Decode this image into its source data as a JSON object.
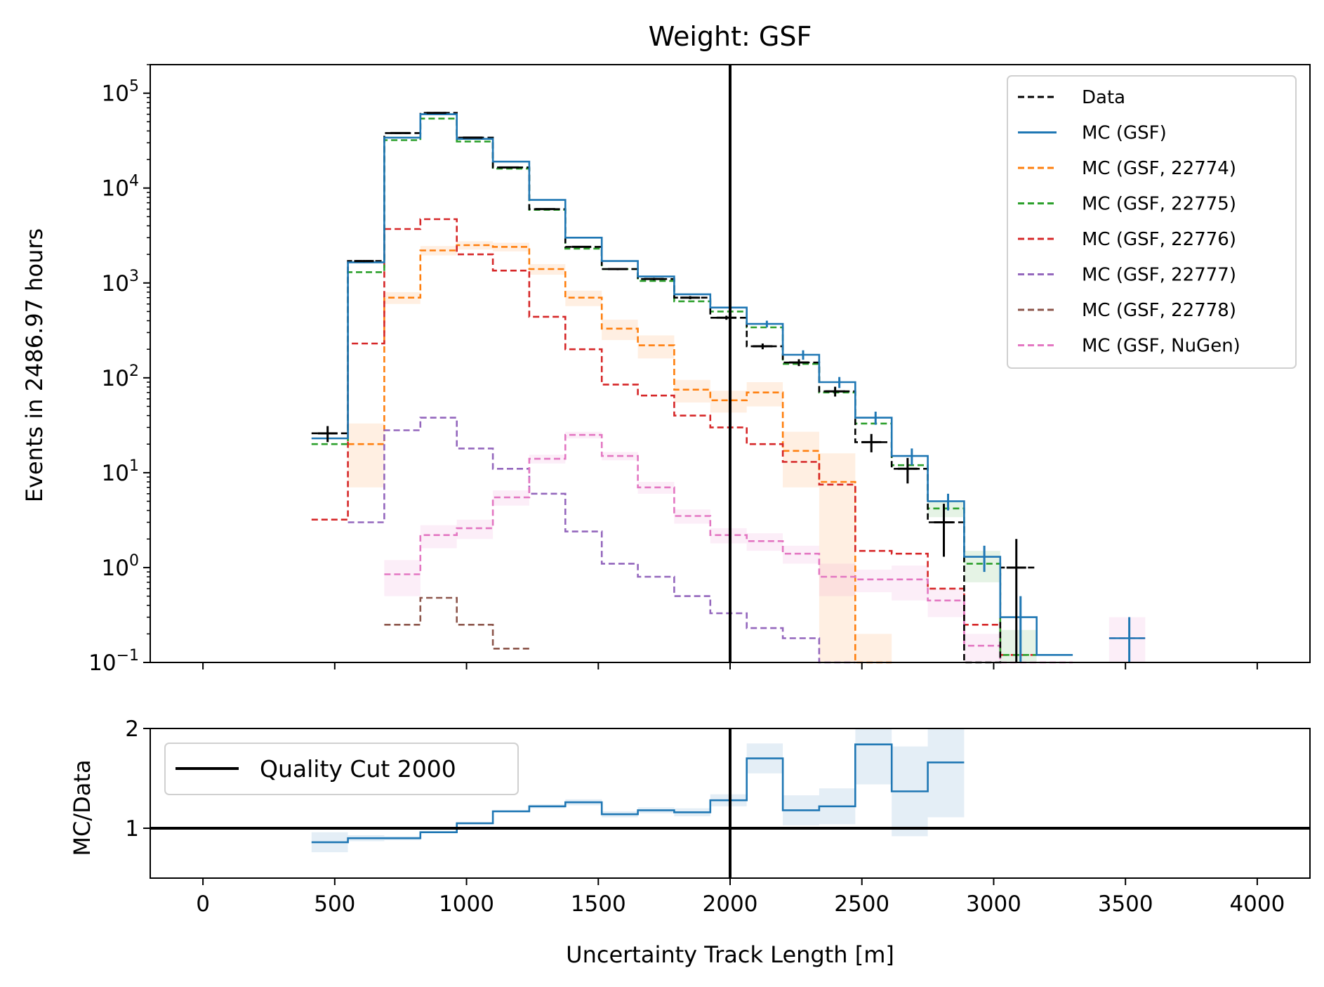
{
  "chart_data": [
    {
      "type": "line",
      "panel": "main",
      "title": "Weight: GSF",
      "ylabel": "Events in 2486.97 hours",
      "yscale": "log",
      "ylim": [
        0.1,
        200000
      ],
      "xlim": [
        -200,
        4200
      ],
      "grid": false,
      "legend_position": "top-right",
      "bin_edges": [
        412,
        550,
        688,
        825,
        963,
        1100,
        1238,
        1375,
        1513,
        1650,
        1788,
        1925,
        2063,
        2200,
        2338,
        2475,
        2613,
        2750,
        2888,
        3025,
        3163,
        3300,
        3438,
        3575
      ],
      "yticks": [
        {
          "value": 0.1,
          "base": "10",
          "exp": "−1"
        },
        {
          "value": 1,
          "base": "10",
          "exp": "0"
        },
        {
          "value": 10,
          "base": "10",
          "exp": "1"
        },
        {
          "value": 100,
          "base": "10",
          "exp": "2"
        },
        {
          "value": 1000,
          "base": "10",
          "exp": "3"
        },
        {
          "value": 10000,
          "base": "10",
          "exp": "4"
        },
        {
          "value": 100000,
          "base": "10",
          "exp": "5"
        }
      ],
      "series": [
        {
          "name": "Data",
          "style": "dashed",
          "color": "#000000",
          "values": [
            26,
            1700,
            38000,
            62000,
            34000,
            16500,
            6000,
            2400,
            1400,
            1100,
            700,
            430,
            215,
            145,
            72,
            21,
            11,
            3,
            0,
            1,
            null,
            null,
            null
          ],
          "err": [
            5,
            41,
            195,
            250,
            185,
            128,
            77,
            49,
            37,
            33,
            26,
            21,
            15,
            12,
            8.5,
            4.6,
            3.3,
            1.7,
            0,
            1,
            null,
            null,
            null
          ]
        },
        {
          "name": "MC (GSF)",
          "style": "solid",
          "color": "#1f77b4",
          "values": [
            23,
            1650,
            34000,
            60000,
            33000,
            19000,
            7500,
            3000,
            1700,
            1170,
            760,
            550,
            370,
            175,
            90,
            38,
            15,
            5,
            1.3,
            0.3,
            0.12,
            null,
            0.18
          ],
          "err": [
            null,
            null,
            null,
            null,
            null,
            null,
            null,
            null,
            null,
            null,
            null,
            null,
            30,
            20,
            12,
            6,
            3,
            1,
            0.4,
            0.2,
            null,
            null,
            0.12
          ]
        },
        {
          "name": "MC (GSF, 22774)",
          "style": "dashed",
          "color": "#ff7f0e",
          "values": [
            null,
            20,
            700,
            2200,
            2500,
            2400,
            1400,
            700,
            330,
            220,
            75,
            58,
            70,
            17,
            8,
            0.1,
            null,
            null,
            null,
            null,
            null,
            null,
            null
          ],
          "err": [
            null,
            13,
            100,
            250,
            250,
            250,
            180,
            130,
            80,
            60,
            20,
            15,
            20,
            10,
            8,
            0.1,
            null,
            null,
            null,
            null,
            null,
            null,
            null
          ]
        },
        {
          "name": "MC (GSF, 22775)",
          "style": "dashed",
          "color": "#2ca02c",
          "values": [
            20,
            1300,
            32000,
            54000,
            31000,
            16000,
            5900,
            2300,
            1400,
            1050,
            640,
            500,
            340,
            140,
            70,
            33,
            12,
            4.2,
            1.1,
            0.12,
            null,
            null,
            null
          ],
          "err": [
            null,
            null,
            null,
            null,
            null,
            null,
            null,
            null,
            null,
            null,
            null,
            null,
            null,
            null,
            null,
            null,
            null,
            0.8,
            0.4,
            0.1,
            null,
            null,
            null
          ]
        },
        {
          "name": "MC (GSF, 22776)",
          "style": "dashed",
          "color": "#d62728",
          "values": [
            3.2,
            230,
            3700,
            4700,
            2000,
            1350,
            440,
            200,
            85,
            65,
            40,
            30,
            20,
            13,
            7.5,
            1.5,
            1.4,
            0.6,
            0.25,
            0.12,
            null,
            null,
            null
          ]
        },
        {
          "name": "MC (GSF, 22777)",
          "style": "dashed",
          "color": "#9467bd",
          "values": [
            null,
            3,
            28,
            38,
            18,
            11,
            6,
            2.4,
            1.1,
            0.8,
            0.5,
            0.33,
            0.23,
            0.18,
            0.1,
            null,
            null,
            null,
            null,
            null,
            null,
            null,
            null
          ]
        },
        {
          "name": "MC (GSF, 22778)",
          "style": "dashed",
          "color": "#8c564b",
          "values": [
            null,
            null,
            0.25,
            0.48,
            0.25,
            0.14,
            null,
            null,
            null,
            null,
            null,
            null,
            null,
            null,
            null,
            null,
            null,
            null,
            null,
            null,
            null,
            null,
            null
          ]
        },
        {
          "name": "MC (GSF, NuGen)",
          "style": "dashed",
          "color": "#e377c2",
          "values": [
            null,
            null,
            0.85,
            2.2,
            2.6,
            5.5,
            14,
            25,
            15,
            7,
            3.5,
            2.2,
            1.9,
            1.4,
            0.8,
            0.75,
            0.75,
            0.45,
            0.15,
            0.1,
            0.1,
            null,
            0.18
          ],
          "err": [
            null,
            null,
            0.35,
            0.6,
            0.6,
            1,
            1.5,
            2,
            1.5,
            1,
            0.6,
            0.4,
            0.4,
            0.3,
            0.3,
            0.2,
            0.3,
            0.15,
            0.05,
            null,
            null,
            null,
            0.12
          ]
        }
      ]
    },
    {
      "type": "line",
      "panel": "ratio",
      "xlabel": "Uncertainty Track Length [m]",
      "ylabel": "MC/Data",
      "ylim": [
        0.5,
        2
      ],
      "xlim": [
        -200,
        4200
      ],
      "legend_position": "top-left",
      "yticks": [
        1,
        2
      ],
      "xticks": [
        0,
        500,
        1000,
        1500,
        2000,
        2500,
        3000,
        3500,
        4000
      ],
      "bin_edges": [
        412,
        550,
        688,
        825,
        963,
        1100,
        1238,
        1375,
        1513,
        1650,
        1788,
        1925,
        2063,
        2200,
        2338,
        2475,
        2613,
        2750,
        2888,
        3025,
        3163,
        3300,
        3438,
        3575
      ],
      "series": [
        {
          "name": "ratio",
          "style": "solid",
          "color": "#1f77b4",
          "values": [
            0.86,
            0.9,
            0.9,
            0.96,
            1.05,
            1.17,
            1.22,
            1.26,
            1.14,
            1.18,
            1.16,
            1.28,
            1.7,
            1.18,
            1.22,
            1.84,
            1.37,
            1.66,
            null,
            null,
            null,
            null,
            null
          ],
          "err": [
            0.1,
            0.03,
            0.02,
            0.01,
            0.01,
            0.01,
            0.02,
            0.03,
            0.03,
            0.03,
            0.04,
            0.06,
            0.15,
            0.15,
            0.18,
            0.4,
            0.45,
            0.55,
            null,
            null,
            null,
            null,
            null
          ]
        }
      ]
    }
  ],
  "legend_items": [
    "Data",
    "MC (GSF)",
    "MC (GSF, 22774)",
    "MC (GSF, 22775)",
    "MC (GSF, 22776)",
    "MC (GSF, 22777)",
    "MC (GSF, 22778)",
    "MC (GSF, NuGen)"
  ],
  "quality_cut": {
    "label": "Quality Cut 2000",
    "x": 2000
  }
}
